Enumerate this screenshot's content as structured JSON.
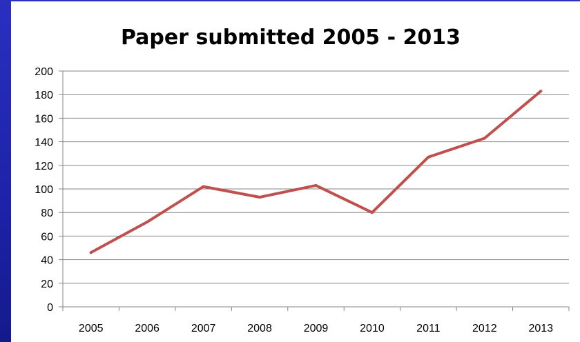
{
  "chart_data": {
    "type": "line",
    "title": "Paper submitted 2005 - 2013",
    "xlabel": "",
    "ylabel": "",
    "categories": [
      "2005",
      "2006",
      "2007",
      "2008",
      "2009",
      "2010",
      "2011",
      "2012",
      "2013"
    ],
    "series": [
      {
        "values": [
          46,
          72,
          102,
          93,
          103,
          80,
          127,
          143,
          183
        ]
      }
    ],
    "ylim": [
      0,
      200
    ],
    "yticks": [
      0,
      20,
      40,
      60,
      80,
      100,
      120,
      140,
      160,
      180,
      200
    ],
    "grid": "horizontal",
    "legend": "none",
    "colors": {
      "line": "#c0504d",
      "grid": "#868686",
      "background": "#1d22a8"
    }
  }
}
